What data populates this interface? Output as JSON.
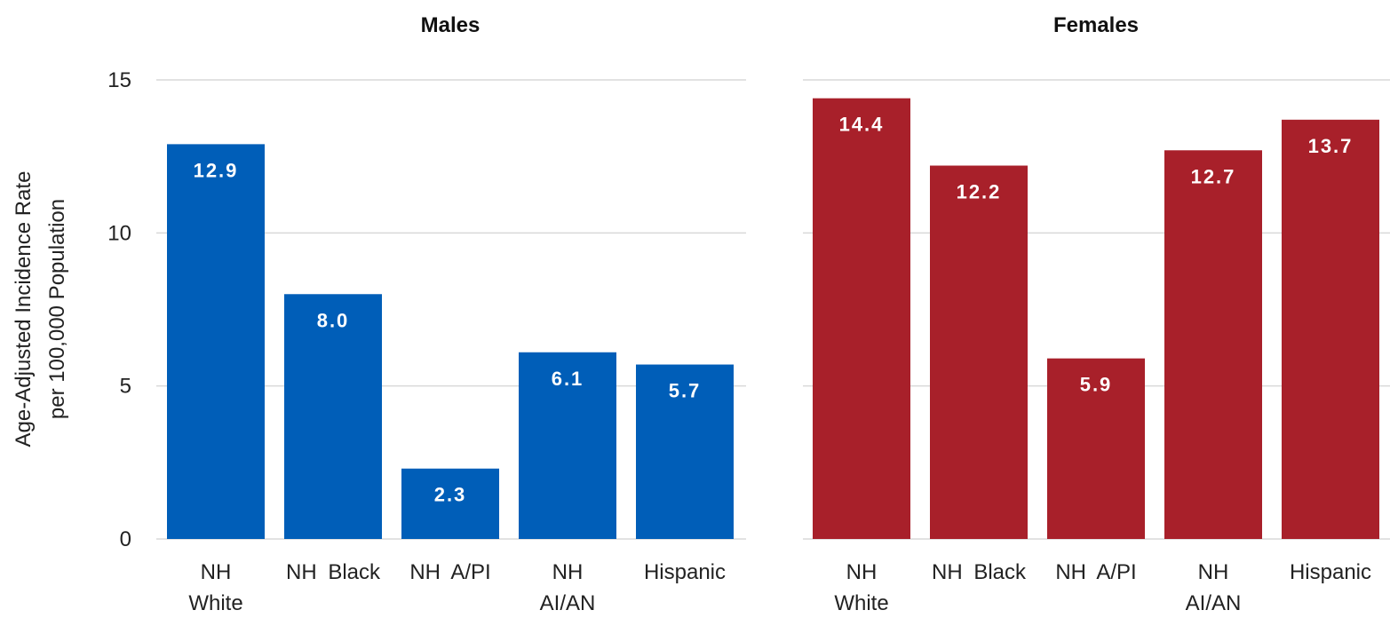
{
  "chart_data": {
    "type": "bar",
    "ylabel_lines": [
      "Age-Adjusted Incidence Rate",
      "per 100,000 Population"
    ],
    "yticks": [
      0,
      5,
      10,
      15
    ],
    "ylim": [
      0,
      15
    ],
    "grid": true,
    "legend": "none",
    "panels": [
      {
        "title": "Males",
        "color": "#005EB8",
        "categories": [
          [
            "NH",
            "White"
          ],
          [
            "NH Black"
          ],
          [
            "NH A/PI"
          ],
          [
            "NH",
            "AI/AN"
          ],
          [
            "Hispanic"
          ]
        ],
        "values": [
          12.9,
          8.0,
          2.3,
          6.1,
          5.7
        ],
        "labels": [
          "12.9",
          "8.0",
          "2.3",
          "6.1",
          "5.7"
        ]
      },
      {
        "title": "Females",
        "color": "#A8202A",
        "categories": [
          [
            "NH",
            "White"
          ],
          [
            "NH Black"
          ],
          [
            "NH A/PI"
          ],
          [
            "NH",
            "AI/AN"
          ],
          [
            "Hispanic"
          ]
        ],
        "values": [
          14.4,
          12.2,
          5.9,
          12.7,
          13.7
        ],
        "labels": [
          "14.4",
          "12.2",
          "5.9",
          "12.7",
          "13.7"
        ]
      }
    ]
  }
}
